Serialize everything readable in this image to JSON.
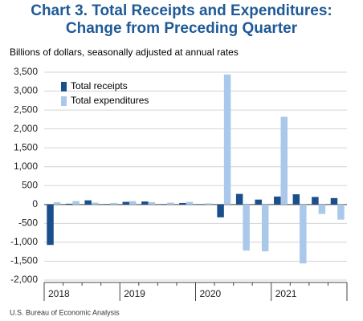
{
  "chart_data": {
    "type": "bar",
    "title_lines": [
      "Chart 3. Total Receipts and Expenditures:",
      "Change from Preceding Quarter"
    ],
    "subtitle": "Billions of dollars, seasonally adjusted at annual rates",
    "source": "U.S. Bureau of Economic Analysis",
    "categories": [
      "2018",
      null,
      null,
      null,
      "2019",
      null,
      null,
      null,
      "2020",
      null,
      null,
      null,
      "2021",
      null,
      null,
      null
    ],
    "series": [
      {
        "name": "Total receipts",
        "color": "#1b4f8c",
        "values": [
          -1070,
          20,
          110,
          10,
          70,
          80,
          10,
          40,
          -10,
          -340,
          280,
          130,
          210,
          270,
          200,
          170
        ]
      },
      {
        "name": "Total expenditures",
        "color": "#a9c8ea",
        "values": [
          60,
          90,
          50,
          40,
          90,
          60,
          50,
          70,
          30,
          3440,
          -1220,
          -1240,
          2320,
          -1560,
          -250,
          -400
        ]
      }
    ],
    "ylim": [
      -2000,
      3500
    ],
    "yticks": [
      {
        "value": -2000,
        "label": "-2,000"
      },
      {
        "value": -1500,
        "label": "-1,500"
      },
      {
        "value": -1000,
        "label": "-1,000"
      },
      -500,
      0,
      500,
      {
        "value": 1000,
        "label": "1,000"
      },
      {
        "value": 1500,
        "label": "1,500"
      },
      {
        "value": 2000,
        "label": "2,000"
      },
      {
        "value": 2500,
        "label": "2,500"
      },
      {
        "value": 3000,
        "label": "3,000"
      },
      {
        "value": 3500,
        "label": "3,500"
      }
    ],
    "grid": true
  }
}
